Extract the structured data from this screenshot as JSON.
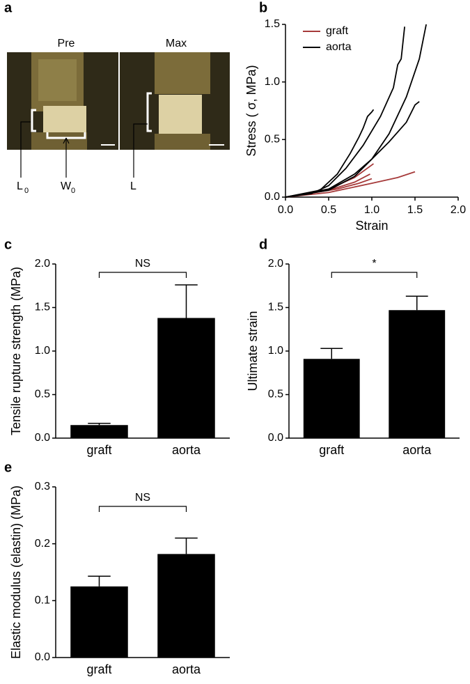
{
  "photo": {
    "panel": "a",
    "images": [
      {
        "title": "Pre"
      },
      {
        "title": "Max"
      }
    ],
    "labels": [
      {
        "main": "L",
        "sub": "0"
      },
      {
        "main": "W",
        "sub": "0"
      },
      {
        "main": "L"
      }
    ]
  },
  "chart_data": [
    {
      "type": "line",
      "panel": "b",
      "xlabel": "Strain",
      "ylabel": "Stress ( σ, MPa)",
      "xlim": [
        0,
        2
      ],
      "ylim": [
        0,
        1.5
      ],
      "xticks": [
        {
          "value": 0,
          "label": "0.0"
        },
        0.5,
        {
          "value": 1,
          "label": "1.0"
        },
        1.5,
        {
          "value": 2,
          "label": "2.0"
        }
      ],
      "yticks": [
        {
          "value": 0,
          "label": "0.0"
        },
        0.5,
        {
          "value": 1,
          "label": "1.0"
        },
        1.5
      ],
      "legend": "upper-left",
      "series": [
        {
          "name": "graft",
          "color": "#a63a3a",
          "curves": [
            {
              "x": [
                0,
                0.5,
                1.0,
                1.3,
                1.5
              ],
              "y": [
                0,
                0.04,
                0.12,
                0.17,
                0.22
              ]
            },
            {
              "x": [
                0,
                0.5,
                0.8,
                1.02
              ],
              "y": [
                0,
                0.07,
                0.17,
                0.29
              ]
            },
            {
              "x": [
                0,
                0.5,
                0.8,
                0.98
              ],
              "y": [
                0,
                0.06,
                0.13,
                0.2
              ]
            },
            {
              "x": [
                0,
                0.6,
                0.85,
                1.0
              ],
              "y": [
                0,
                0.07,
                0.12,
                0.16
              ]
            }
          ]
        },
        {
          "name": "aorta",
          "color": "#000000",
          "curves": [
            {
              "x": [
                0,
                0.3,
                0.5,
                0.7,
                0.9,
                1.1,
                1.25,
                1.3,
                1.34,
                1.38
              ],
              "y": [
                0,
                0.03,
                0.1,
                0.25,
                0.45,
                0.7,
                0.95,
                1.15,
                1.2,
                1.48
              ]
            },
            {
              "x": [
                0,
                0.5,
                0.8,
                1.0,
                1.2,
                1.4,
                1.55,
                1.63
              ],
              "y": [
                0,
                0.06,
                0.18,
                0.33,
                0.55,
                0.87,
                1.2,
                1.5
              ]
            },
            {
              "x": [
                0,
                0.5,
                0.8,
                1.0,
                1.2,
                1.4,
                1.5,
                1.55
              ],
              "y": [
                0,
                0.07,
                0.2,
                0.33,
                0.48,
                0.65,
                0.8,
                0.83
              ]
            },
            {
              "x": [
                0,
                0.4,
                0.6,
                0.75,
                0.85,
                0.9,
                0.95,
                1.0,
                1.02
              ],
              "y": [
                0,
                0.06,
                0.2,
                0.38,
                0.52,
                0.6,
                0.7,
                0.74,
                0.76
              ]
            }
          ]
        }
      ]
    },
    {
      "type": "bar",
      "panel": "c",
      "ylabel": "Tensile rupture strength (MPa)",
      "categories": [
        "graft",
        "aorta"
      ],
      "values": [
        0.15,
        1.38
      ],
      "errors": [
        0.02,
        0.38
      ],
      "color": "#000000",
      "annotation": "NS",
      "ylim": [
        0,
        2
      ],
      "yticks": [
        {
          "value": 0,
          "label": "0.0"
        },
        0.5,
        {
          "value": 1,
          "label": "1.0"
        },
        1.5,
        {
          "value": 2,
          "label": "2.0"
        }
      ]
    },
    {
      "type": "bar",
      "panel": "d",
      "ylabel": "Ultimate strain",
      "categories": [
        "graft",
        "aorta"
      ],
      "values": [
        0.91,
        1.47
      ],
      "errors": [
        0.12,
        0.16
      ],
      "color": "#000000",
      "annotation": "*",
      "ylim": [
        0,
        2
      ],
      "yticks": [
        {
          "value": 0,
          "label": "0.0"
        },
        0.5,
        {
          "value": 1,
          "label": "1.0"
        },
        1.5,
        {
          "value": 2,
          "label": "2.0"
        }
      ]
    },
    {
      "type": "bar",
      "panel": "e",
      "ylabel": "Elastic modulus (elastin) (MPa)",
      "categories": [
        "graft",
        "aorta"
      ],
      "values": [
        0.125,
        0.182
      ],
      "errors": [
        0.018,
        0.028
      ],
      "color": "#000000",
      "annotation": "NS",
      "ylim": [
        0,
        0.3
      ],
      "yticks": [
        {
          "value": 0,
          "label": "0.0"
        },
        0.1,
        0.2,
        0.3
      ]
    }
  ]
}
